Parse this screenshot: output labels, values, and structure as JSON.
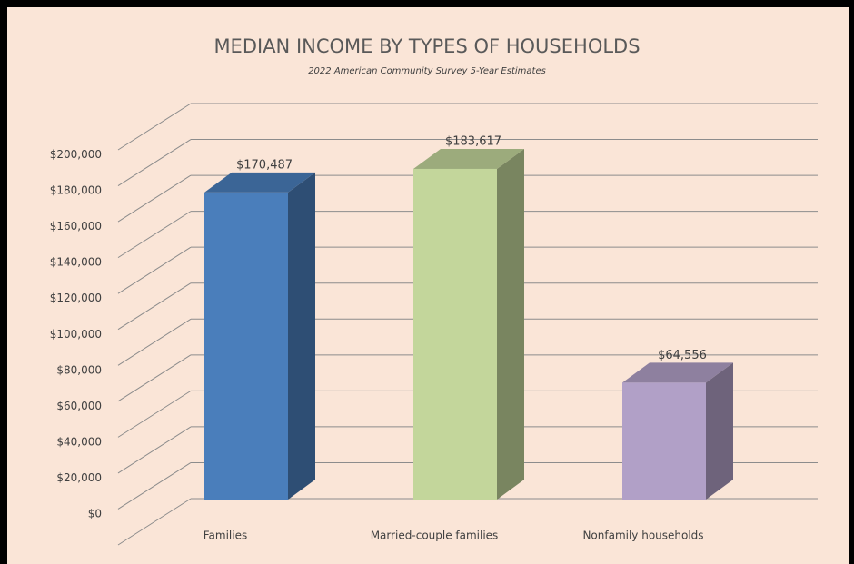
{
  "chart_data": {
    "type": "bar3d",
    "title": "MEDIAN INCOME BY TYPES OF HOUSEHOLDS",
    "subtitle": "2022 American Community Survey 5-Year Estimates",
    "categories": [
      "Families",
      "Married-couple families",
      "Nonfamily households"
    ],
    "values": [
      170487,
      183617,
      64556
    ],
    "value_labels": [
      "$170,487",
      "$183,617",
      "$64,556"
    ],
    "colors": [
      "#4a7ebb",
      "#c3d69b",
      "#b1a0c7"
    ],
    "ylim": [
      0,
      220000
    ],
    "yticks": [
      {
        "value": 0,
        "label": "$0"
      },
      {
        "value": 20000,
        "label": "$20,000"
      },
      {
        "value": 40000,
        "label": "$40,000"
      },
      {
        "value": 60000,
        "label": "$60,000"
      },
      {
        "value": 80000,
        "label": "$80,000"
      },
      {
        "value": 100000,
        "label": "$100,000"
      },
      {
        "value": 120000,
        "label": "$120,000"
      },
      {
        "value": 140000,
        "label": "$140,000"
      },
      {
        "value": 160000,
        "label": "$160,000"
      },
      {
        "value": 180000,
        "label": "$180,000"
      },
      {
        "value": 200000,
        "label": "$200,000"
      }
    ],
    "grid": true
  }
}
